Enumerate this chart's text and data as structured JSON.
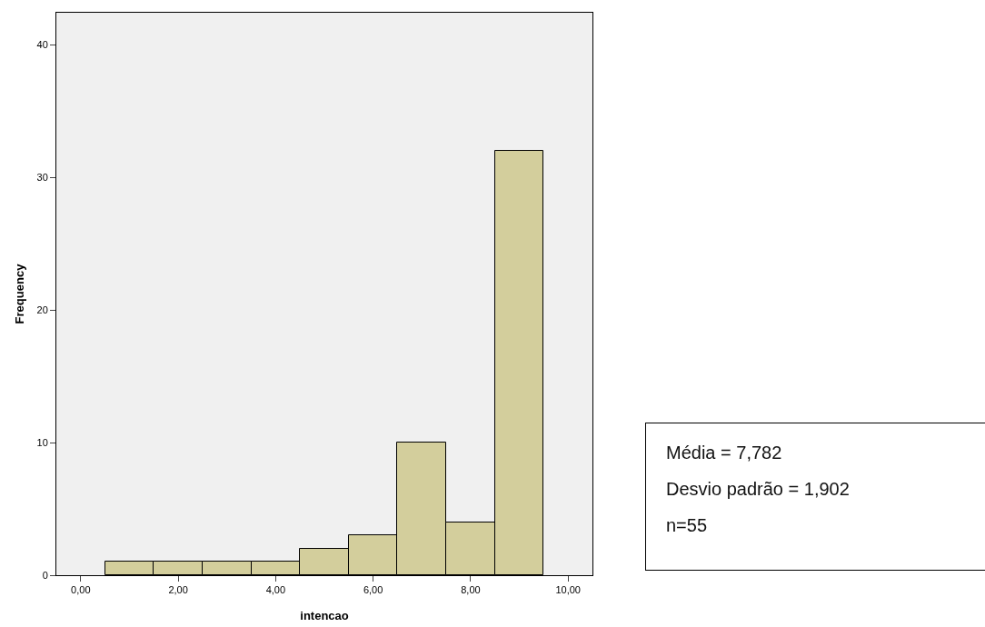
{
  "chart_data": {
    "type": "histogram",
    "xlabel": "intencao",
    "ylabel": "Frequency",
    "bins": [
      0.5,
      1.5,
      2.5,
      3.5,
      4.5,
      5.5,
      6.5,
      7.5,
      8.5,
      9.5
    ],
    "values": [
      1,
      1,
      1,
      1,
      2,
      3,
      10,
      4,
      32
    ],
    "color": "#d3ce9c",
    "xlim": [
      -0.5,
      10.5
    ],
    "xticks": [
      {
        "value": 0,
        "label": "0,00"
      },
      {
        "value": 2,
        "label": "2,00"
      },
      {
        "value": 4,
        "label": "4,00"
      },
      {
        "value": 6,
        "label": "6,00"
      },
      {
        "value": 8,
        "label": "8,00"
      },
      {
        "value": 10,
        "label": "10,00"
      }
    ],
    "ylim": [
      0,
      42.4
    ],
    "yticks": [
      0,
      10,
      20,
      30,
      40
    ],
    "grid": false,
    "annotations": [
      "Média = 7,782",
      "Desvio padrão = 1,902",
      "n=55"
    ]
  }
}
